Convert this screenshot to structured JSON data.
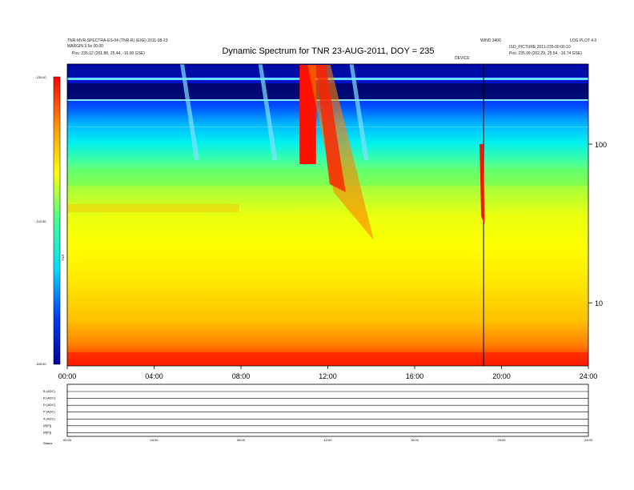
{
  "header": {
    "left_line1": "TNR-MVR-SPECTRA-ES-04 (TNR-R) (EXE) 2011-08-23",
    "left_line2": "MARGIN 3.5e 00:00",
    "left_pos": "Pos:  235.12 (201.88, 25.44, -16.00 GSE)",
    "right_top_a": "WIND 3400",
    "right_top_b": "LOG PLOT 4.0",
    "right_line2": "ISO_PICTURE 2011-235-00:00:10",
    "right_pos": "Pos:  235.99 (202.29, 25.54, -16.74 GSE)",
    "marker": "DEVICE"
  },
  "chart_data": {
    "type": "heatmap",
    "title": "Dynamic Spectrum for TNR 23-AUG-2011, DOY = 235",
    "x_ticks": [
      "00:00",
      "04:00",
      "08:00",
      "12:00",
      "16:00",
      "20:00",
      "24:00"
    ],
    "xlim": [
      0,
      24
    ],
    "y_scale": "log",
    "y_ticks": [
      "100",
      "10"
    ],
    "y_tick_values": [
      100,
      10
    ],
    "ylim": [
      4,
      320
    ],
    "colorbar": {
      "max_label": "-130.00",
      "mid_label": "-142.50",
      "min_label": "-155.00",
      "label": "TNR",
      "colors": [
        "#0000a0",
        "#0040ff",
        "#00e0ff",
        "#40ff90",
        "#ffff00",
        "#ff9000",
        "#ff0000"
      ]
    },
    "bursts": [
      {
        "name": "",
        "start": 10.7,
        "end": 11.9
      },
      {
        "name": "",
        "start": 19.1,
        "end": 19.3
      }
    ],
    "subpanels": [
      {
        "label": "B (ADC)"
      },
      {
        "label": "R (ADC)"
      },
      {
        "label": "D (ADC)"
      },
      {
        "label": "P (ADC)"
      },
      {
        "label": "A (ADC)"
      },
      {
        "label": "(R[F])"
      },
      {
        "label": "(R[F])"
      }
    ],
    "sub_x_ticks": [
      "00:00",
      "04:00",
      "08:00",
      "12:00",
      "16:00",
      "20:00",
      "24:00"
    ],
    "status_label": "Status"
  }
}
